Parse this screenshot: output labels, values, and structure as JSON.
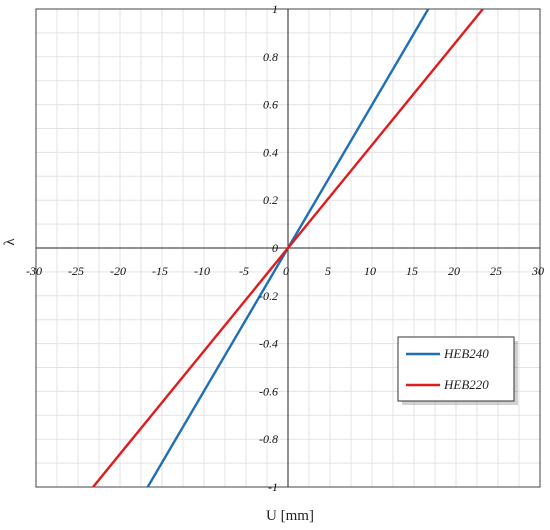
{
  "chart_data": {
    "type": "line",
    "title": "",
    "xlabel": "U [mm]",
    "ylabel": "λ",
    "xlim": [
      -30,
      30
    ],
    "ylim": [
      -1,
      1
    ],
    "x_ticks": [
      "-30",
      "-25",
      "-20",
      "-15",
      "-10",
      "-5",
      "0",
      "5",
      "10",
      "15",
      "20",
      "25",
      "30"
    ],
    "y_ticks": [
      "1",
      "0.8",
      "0.6",
      "0.4",
      "0.2",
      "0",
      "-0.2",
      "-0.4",
      "-0.6",
      "-0.8",
      "-1"
    ],
    "grid": true,
    "legend_position": "right-middle",
    "series": [
      {
        "name": "HEB240",
        "color": "#1f6fb5",
        "x": [
          -16.7,
          0,
          16.7
        ],
        "y": [
          -1,
          0,
          1
        ]
      },
      {
        "name": "HEB220",
        "color": "#e01b1b",
        "x": [
          -23.2,
          0,
          23.2
        ],
        "y": [
          -1,
          0,
          1
        ]
      }
    ]
  }
}
